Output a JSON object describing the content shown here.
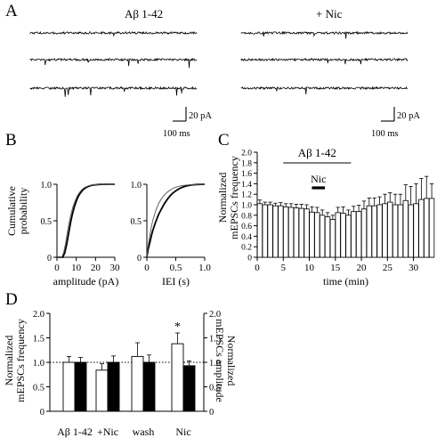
{
  "panels": {
    "a": {
      "letter": "A",
      "left_label": "Aβ 1-42",
      "right_label": "+ Nic",
      "scalebar_left": {
        "current": "20 pA",
        "time": "100 ms"
      },
      "scalebar_right": {
        "current": "20 pA",
        "time": "100 ms"
      }
    },
    "b": {
      "letter": "B",
      "ylabel_line1": "Cumulative",
      "ylabel_line2": "probability"
    },
    "c": {
      "letter": "C",
      "ylabel_line1": "Normalized",
      "ylabel_line2": "mEPSCs frequency",
      "abeta_label": "Aβ 1-42",
      "nic_label": "Nic"
    },
    "d": {
      "letter": "D",
      "ylabel_left_line1": "Normalized",
      "ylabel_left_line2": "mEPSCs frequency",
      "ylabel_right_line1": "Normalized",
      "ylabel_right_line2": "mEPSCs amplitude",
      "significance": "*"
    }
  },
  "chart_data": [
    {
      "id": "B-amplitude",
      "type": "line",
      "xlabel": "amplitude (pA)",
      "ylabel": "Cumulative probability",
      "xlim": [
        0,
        30
      ],
      "ylim": [
        0,
        1.0
      ],
      "xticks": [
        0,
        10,
        20,
        30
      ],
      "yticks": [
        0,
        0.5,
        1.0
      ],
      "series": [
        {
          "color": "#000000",
          "width": 1.8,
          "x": [
            0,
            3,
            4,
            5,
            6,
            7,
            8,
            9,
            10,
            11,
            12,
            13,
            14,
            15,
            16,
            17,
            18,
            19,
            20,
            22,
            24,
            26,
            30
          ],
          "y": [
            0,
            0,
            0.06,
            0.17,
            0.32,
            0.47,
            0.59,
            0.69,
            0.77,
            0.83,
            0.875,
            0.91,
            0.935,
            0.955,
            0.967,
            0.977,
            0.985,
            0.99,
            0.993,
            0.997,
            0.999,
            1.0,
            1.0
          ]
        },
        {
          "color": "#555555",
          "width": 0.9,
          "x": [
            0,
            2.5,
            3.5,
            4.5,
            5.5,
            6.5,
            7.5,
            8.5,
            9.5,
            10.5,
            11.5,
            12.5,
            13.5,
            14.5,
            16,
            18,
            20,
            22,
            25,
            30
          ],
          "y": [
            0,
            0,
            0.07,
            0.2,
            0.36,
            0.5,
            0.62,
            0.71,
            0.78,
            0.84,
            0.88,
            0.915,
            0.94,
            0.958,
            0.975,
            0.988,
            0.994,
            0.997,
            0.999,
            1.0
          ]
        }
      ]
    },
    {
      "id": "B-IEI",
      "type": "line",
      "xlabel": "IEI (s)",
      "xlim": [
        0,
        1.0
      ],
      "ylim": [
        0,
        1.0
      ],
      "xticks": [
        0,
        0.5,
        1.0
      ],
      "yticks": [
        0,
        0.5,
        1.0
      ],
      "series": [
        {
          "color": "#000000",
          "width": 1.8,
          "x": [
            0,
            0.02,
            0.05,
            0.08,
            0.1,
            0.15,
            0.2,
            0.25,
            0.3,
            0.35,
            0.4,
            0.45,
            0.5,
            0.55,
            0.6,
            0.65,
            0.7,
            0.75,
            0.8,
            0.85,
            0.9,
            1.0
          ],
          "y": [
            0,
            0.1,
            0.2,
            0.3,
            0.36,
            0.48,
            0.58,
            0.66,
            0.73,
            0.79,
            0.84,
            0.88,
            0.91,
            0.935,
            0.955,
            0.97,
            0.98,
            0.988,
            0.993,
            0.996,
            0.998,
            1.0
          ]
        },
        {
          "color": "#555555",
          "width": 0.9,
          "x": [
            0,
            0.02,
            0.05,
            0.08,
            0.1,
            0.15,
            0.2,
            0.25,
            0.3,
            0.35,
            0.4,
            0.45,
            0.5,
            0.55,
            0.6,
            0.7,
            0.8,
            0.9,
            1.0
          ],
          "y": [
            0,
            0.15,
            0.3,
            0.42,
            0.5,
            0.63,
            0.73,
            0.8,
            0.85,
            0.89,
            0.92,
            0.945,
            0.96,
            0.972,
            0.98,
            0.99,
            0.995,
            0.998,
            1.0
          ]
        }
      ]
    },
    {
      "id": "C",
      "type": "bar",
      "xlabel": "time (min)",
      "ylabel": "Normalized mEPSCs frequency",
      "xlim": [
        0,
        34
      ],
      "ylim": [
        0,
        2.0
      ],
      "xticks": [
        0,
        5,
        10,
        15,
        20,
        25,
        30
      ],
      "yticks": [
        0,
        0.2,
        0.4,
        0.6,
        0.8,
        1.0,
        1.2,
        1.4,
        1.6,
        1.8,
        2.0
      ],
      "abeta_range": [
        5,
        18
      ],
      "nic_range": [
        10.5,
        13
      ],
      "x": [
        0,
        1,
        2,
        3,
        4,
        5,
        6,
        7,
        8,
        9,
        10,
        11,
        12,
        13,
        14,
        15,
        16,
        17,
        18,
        19,
        20,
        21,
        22,
        23,
        24,
        25,
        26,
        27,
        28,
        29,
        30,
        31,
        32,
        33
      ],
      "values": [
        1.02,
        1.0,
        1.0,
        0.98,
        0.98,
        0.96,
        0.95,
        0.94,
        0.93,
        0.92,
        0.86,
        0.85,
        0.8,
        0.77,
        0.72,
        0.85,
        0.84,
        0.8,
        0.87,
        0.87,
        0.92,
        0.98,
        0.98,
        1.0,
        1.02,
        1.05,
        1.0,
        1.0,
        1.08,
        1.0,
        1.02,
        1.1,
        1.12,
        1.12
      ],
      "errors": [
        0.07,
        0.05,
        0.05,
        0.05,
        0.06,
        0.06,
        0.07,
        0.07,
        0.08,
        0.08,
        0.1,
        0.1,
        0.1,
        0.08,
        0.08,
        0.1,
        0.12,
        0.1,
        0.1,
        0.12,
        0.15,
        0.15,
        0.15,
        0.15,
        0.18,
        0.18,
        0.2,
        0.2,
        0.3,
        0.35,
        0.38,
        0.4,
        0.42,
        0.28
      ]
    },
    {
      "id": "D",
      "type": "bar",
      "categories": [
        "Aβ 1-42",
        "+Nic",
        "wash",
        "Nic"
      ],
      "ylim": [
        0,
        2.0
      ],
      "yticks": [
        0,
        0.5,
        1.0,
        1.5,
        2.0
      ],
      "y2lim": [
        0,
        2.0
      ],
      "y2ticks": [
        0,
        0.5,
        1.0,
        1.5,
        2.0
      ],
      "reference_line": 1.0,
      "series": [
        {
          "fill": "#ffffff",
          "values": [
            1.0,
            0.84,
            1.12,
            1.38
          ],
          "errors": [
            0.12,
            0.13,
            0.28,
            0.22
          ]
        },
        {
          "fill": "#000000",
          "values": [
            1.0,
            1.0,
            1.0,
            0.93
          ],
          "errors": [
            0.1,
            0.13,
            0.15,
            0.1
          ]
        }
      ],
      "significant_index": 3
    }
  ]
}
